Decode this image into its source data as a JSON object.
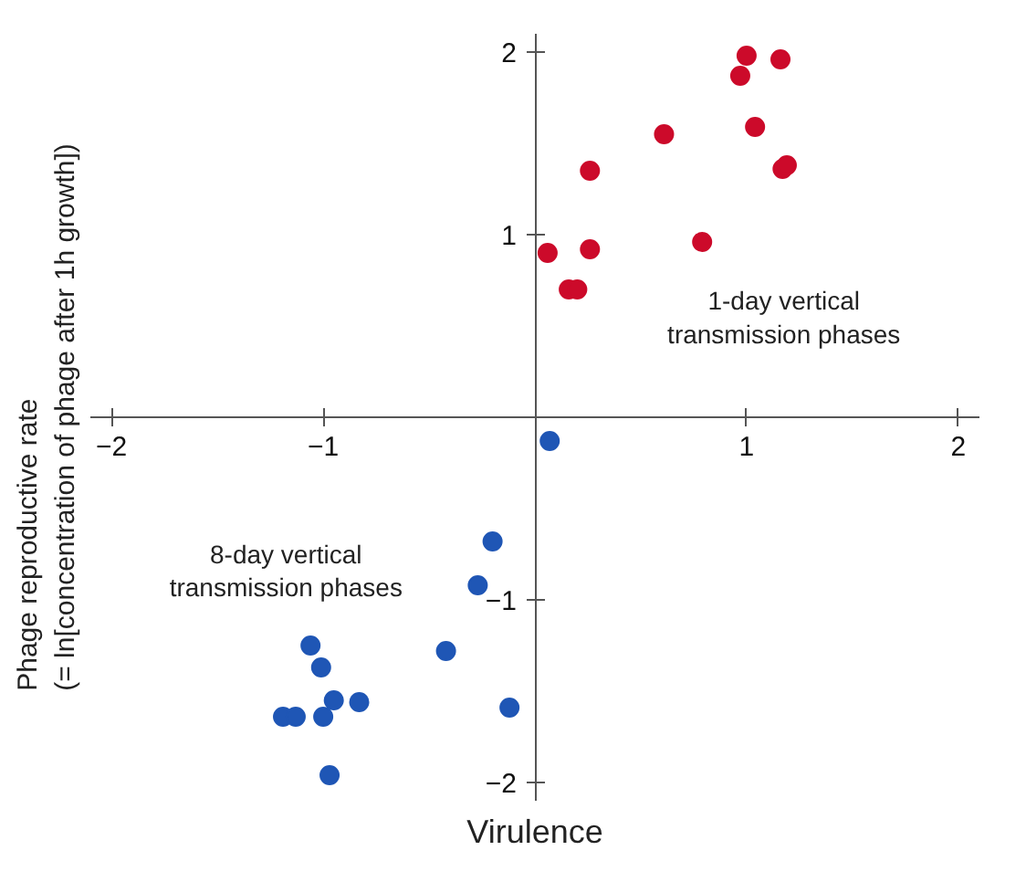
{
  "chart_data": {
    "type": "scatter",
    "xlabel": "Virulence",
    "ylabel": "Phage reproductive rate\n(= ln[concentration of phage after 1h growth])",
    "series": [
      {
        "color": "#cc0a2a",
        "x": [
          0.06,
          0.16,
          0.2,
          0.26,
          0.26,
          0.61,
          0.79,
          0.97,
          1.0,
          1.04,
          1.16,
          1.17,
          1.19
        ],
        "values": [
          0.9,
          0.7,
          0.7,
          0.92,
          1.35,
          1.55,
          0.96,
          1.87,
          1.98,
          1.59,
          1.96,
          1.36,
          1.38
        ]
      },
      {
        "color": "#1f56b5",
        "x": [
          0.07,
          -0.2,
          -0.27,
          -0.42,
          -0.12,
          -1.06,
          -1.01,
          -0.95,
          -0.83,
          -1.19,
          -1.13,
          -1.0,
          -0.97
        ],
        "values": [
          -0.13,
          -0.68,
          -0.92,
          -1.28,
          -1.59,
          -1.25,
          -1.37,
          -1.55,
          -1.56,
          -1.64,
          -1.64,
          -1.64,
          -1.96
        ]
      }
    ],
    "annotations": [
      "1-day vertical\ntransmission phases",
      "8-day vertical\ntransmission phases"
    ],
    "xlim": [
      -2.1,
      2.1
    ],
    "ylim": [
      -2.1,
      2.1
    ],
    "xticks": [
      -2,
      -1,
      1,
      2
    ],
    "yticks": [
      -2,
      -1,
      1,
      2
    ],
    "grid": false,
    "marker": "circle"
  }
}
